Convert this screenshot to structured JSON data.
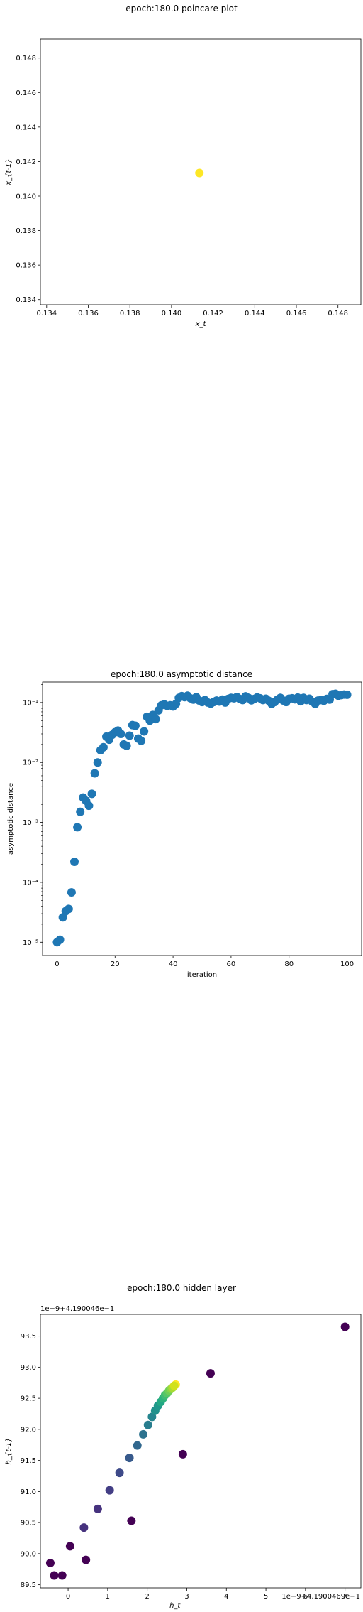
{
  "chart_data": [
    {
      "type": "scatter",
      "title": "epoch:180.0 poincare plot",
      "xlabel": "x_t",
      "ylabel": "x_{t-1}",
      "xlim": [
        0.1337,
        0.1491
      ],
      "ylim": [
        0.1337,
        0.1491
      ],
      "x_ticks": [
        "0.134",
        "0.136",
        "0.138",
        "0.140",
        "0.142",
        "0.144",
        "0.146",
        "0.148"
      ],
      "y_ticks": [
        "0.134",
        "0.136",
        "0.138",
        "0.140",
        "0.142",
        "0.144",
        "0.146",
        "0.148"
      ],
      "points": [
        {
          "x": 0.14134,
          "y": 0.14134,
          "color": "#fde725"
        }
      ],
      "grid": false
    },
    {
      "type": "scatter",
      "title": "epoch:180.0 asymptotic distance",
      "xlabel": "iteration",
      "ylabel": "asymptotic distance",
      "yscale": "log",
      "xlim": [
        -5,
        105
      ],
      "ylim": [
        6e-06,
        0.22
      ],
      "x_ticks": [
        "0",
        "20",
        "40",
        "60",
        "80",
        "100"
      ],
      "y_ticks": [
        "10⁻⁵",
        "10⁻⁴",
        "10⁻³",
        "10⁻²",
        "10⁻¹"
      ],
      "color": "#1f77b4",
      "y": [
        1e-05,
        1.1e-05,
        2.6e-05,
        3.3e-05,
        3.6e-05,
        6.8e-05,
        0.00022,
        0.00083,
        0.0015,
        0.0026,
        0.0023,
        0.0019,
        0.003,
        0.0066,
        0.01,
        0.016,
        0.018,
        0.027,
        0.024,
        0.029,
        0.032,
        0.034,
        0.03,
        0.02,
        0.019,
        0.028,
        0.042,
        0.041,
        0.025,
        0.023,
        0.033,
        0.058,
        0.05,
        0.062,
        0.053,
        0.074,
        0.09,
        0.093,
        0.088,
        0.09,
        0.086,
        0.095,
        0.12,
        0.128,
        0.123,
        0.13,
        0.118,
        0.112,
        0.123,
        0.108,
        0.102,
        0.11,
        0.1,
        0.096,
        0.102,
        0.108,
        0.104,
        0.112,
        0.1,
        0.115,
        0.12,
        0.118,
        0.124,
        0.115,
        0.11,
        0.127,
        0.12,
        0.109,
        0.115,
        0.122,
        0.118,
        0.11,
        0.116,
        0.107,
        0.095,
        0.102,
        0.112,
        0.12,
        0.108,
        0.102,
        0.116,
        0.118,
        0.113,
        0.121,
        0.105,
        0.12,
        0.11,
        0.116,
        0.104,
        0.095,
        0.108,
        0.11,
        0.107,
        0.115,
        0.112,
        0.138,
        0.14,
        0.13,
        0.133,
        0.136,
        0.135
      ],
      "grid": false
    },
    {
      "type": "scatter",
      "title": "epoch:180.0 hidden layer",
      "xlabel": "h_t",
      "ylabel": "h_{t-1}",
      "x_offset_label": "1e−9+4.1900469e−1",
      "y_offset_label": "1e−9+4.190046e−1",
      "xlim": [
        -0.7,
        7.4
      ],
      "ylim": [
        89.45,
        93.85
      ],
      "x_ticks": [
        "0",
        "1",
        "2",
        "3",
        "4",
        "5",
        "6",
        "7"
      ],
      "y_ticks": [
        "89.5",
        "90.0",
        "90.5",
        "91.0",
        "91.5",
        "92.0",
        "92.5",
        "93.0",
        "93.5"
      ],
      "x": [
        7.0,
        3.6,
        2.9,
        1.6,
        0.45,
        -0.35,
        -0.45,
        2.72,
        -0.15,
        0.05,
        0.4,
        0.75,
        1.05,
        1.3,
        1.55,
        1.75,
        1.9,
        2.02,
        2.12,
        2.2,
        2.27,
        2.34,
        2.4,
        2.45,
        2.5,
        2.55,
        2.6,
        2.64,
        2.68
      ],
      "y": [
        93.65,
        92.9,
        91.6,
        90.53,
        89.9,
        89.65,
        89.85,
        92.72,
        89.65,
        90.12,
        90.42,
        90.72,
        91.02,
        91.3,
        91.54,
        91.74,
        91.92,
        92.07,
        92.2,
        92.3,
        92.38,
        92.44,
        92.5,
        92.55,
        92.58,
        92.62,
        92.65,
        92.67,
        92.7
      ],
      "colors": [
        "#440154",
        "#440154",
        "#440154",
        "#440154",
        "#440154",
        "#440154",
        "#440154",
        "#fde725",
        "#440154",
        "#440154",
        "#46327e",
        "#46327e",
        "#433e85",
        "#3e4a89",
        "#375a8c",
        "#31688e",
        "#2c728e",
        "#287d8e",
        "#25858e",
        "#21918c",
        "#1f988b",
        "#22a884",
        "#2db27d",
        "#3fbc73",
        "#56c667",
        "#6ece58",
        "#89d548",
        "#a8db34",
        "#d0e11c"
      ],
      "grid": false
    }
  ]
}
